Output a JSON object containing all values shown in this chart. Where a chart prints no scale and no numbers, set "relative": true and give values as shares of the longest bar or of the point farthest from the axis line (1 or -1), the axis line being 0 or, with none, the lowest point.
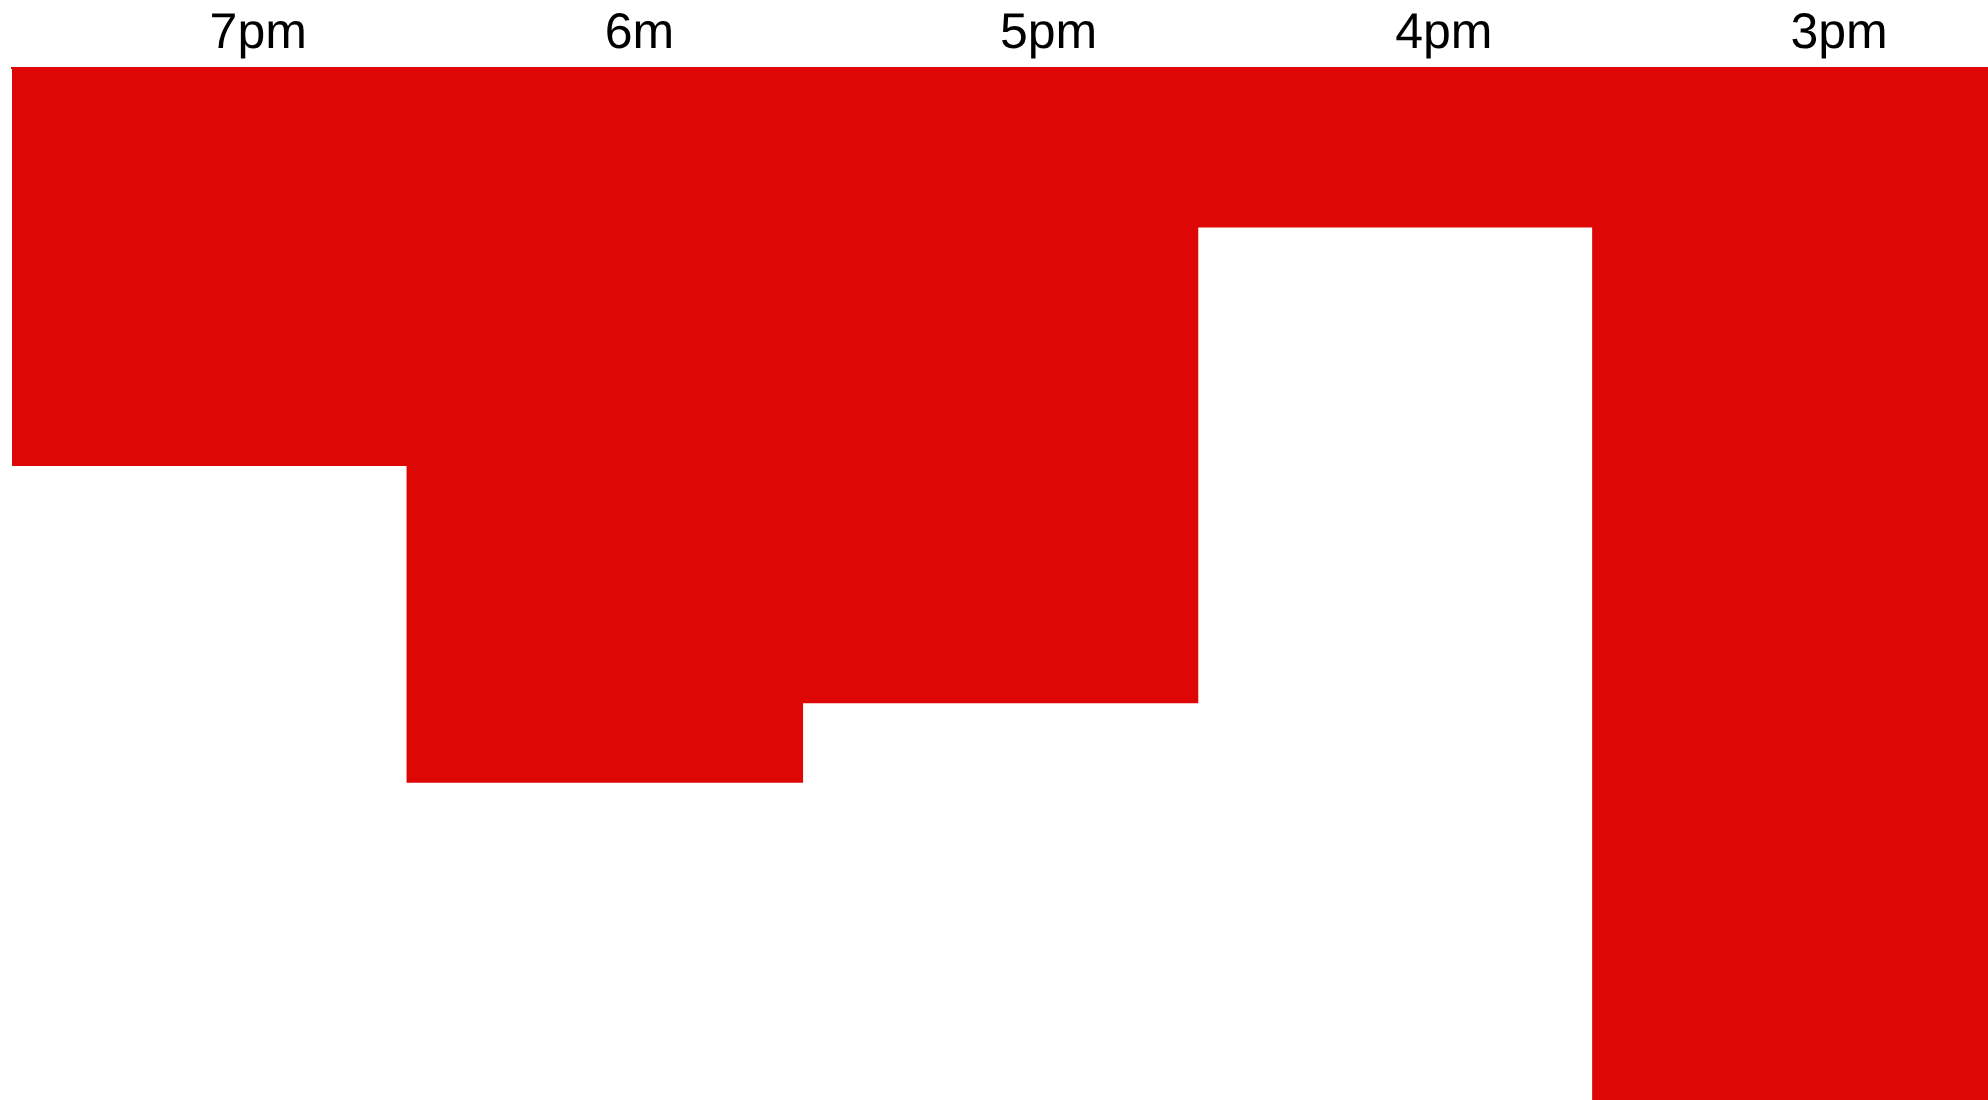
{
  "chart_data": {
    "type": "bar",
    "categories": [
      "7pm",
      "6m",
      "5pm",
      "4pm",
      "3pm"
    ],
    "values": [
      -0.385,
      -0.692,
      -0.615,
      -0.154,
      -1
    ],
    "color": "#dd0805",
    "relative": true,
    "grid": false,
    "legend": false
  }
}
